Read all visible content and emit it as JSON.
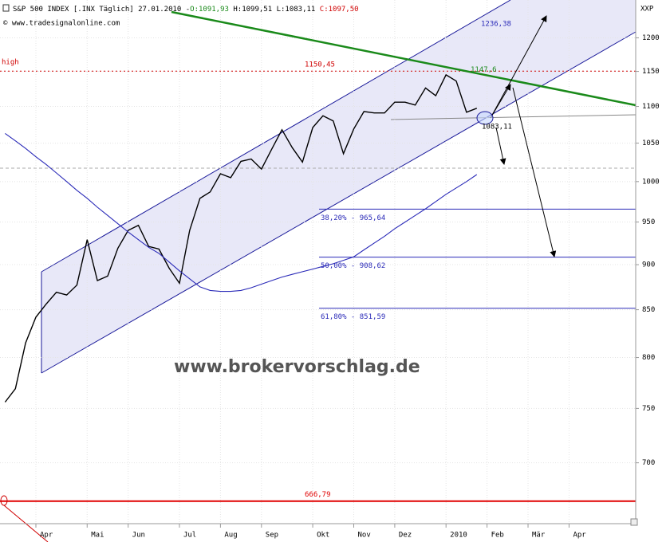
{
  "header": {
    "name": "S&P 500 INDEX [.INX Täglich] 27.01.2010 -",
    "open": "O:1091,93",
    "high": "H:1099,51",
    "low": "L:1083,11",
    "close": "C:1097,50",
    "source": "© www.tradesignalonline.com",
    "corner": "XXP",
    "watermark": "www.brokervorschlag.de"
  },
  "chart_data": {
    "type": "line",
    "log": true,
    "grid": true,
    "categories": [
      null,
      null,
      null,
      "Apr",
      null,
      null,
      null,
      null,
      "Mai",
      null,
      null,
      null,
      "Jun",
      null,
      null,
      null,
      null,
      "Jul",
      null,
      null,
      null,
      "Aug",
      null,
      null,
      null,
      "Sep",
      null,
      null,
      null,
      null,
      "Okt",
      null,
      null,
      null,
      "Nov",
      null,
      null,
      null,
      "Dez",
      null,
      null,
      null,
      null,
      "2010",
      null,
      null,
      null,
      "Feb",
      null,
      null,
      null,
      "Mär",
      null,
      null,
      null,
      "Apr",
      null,
      null,
      null,
      null,
      null,
      null
    ],
    "series": [
      {
        "color": "#000000",
        "values": [
          756,
          769,
          815,
          842,
          856,
          869,
          866,
          877,
          929,
          882,
          887,
          919,
          940,
          946,
          921,
          918,
          896,
          879,
          940,
          979,
          987,
          1010,
          1005,
          1026,
          1029,
          1016,
          1042,
          1068,
          1044,
          1025,
          1071,
          1087,
          1080,
          1036,
          1069,
          1093,
          1091,
          1091,
          1106,
          1106,
          1102,
          1126,
          1115,
          1145,
          1136,
          1092,
          1097.5,
          null,
          null,
          null,
          null,
          null,
          null,
          null,
          null,
          null,
          null,
          null,
          null,
          null,
          null,
          null
        ]
      },
      {
        "color": "#2a2ab8",
        "values": [
          1063,
          1053,
          1043,
          1032,
          1022,
          1011,
          1000,
          989,
          979,
          968,
          958,
          948,
          938,
          929,
          920,
          913,
          903,
          893,
          884,
          875,
          871,
          870,
          870,
          871,
          874,
          878,
          882,
          886,
          889,
          892,
          895,
          898,
          901,
          905,
          909,
          917,
          925,
          933,
          942,
          950,
          958,
          966,
          975,
          984,
          992,
          1000,
          1009,
          null,
          null,
          null,
          null,
          null,
          null,
          null,
          null,
          null,
          null,
          null,
          null,
          null,
          null,
          null
        ]
      }
    ],
    "ylim": [
      648,
      1259
    ],
    "yticks": [
      700,
      750,
      800,
      850,
      900,
      950,
      1000,
      1050,
      1100,
      1150,
      1200
    ],
    "levels": [
      {
        "value": 1150.45,
        "label": "1150,45",
        "note": "high",
        "color": "#d00000",
        "style": "dashed"
      },
      {
        "value": 666.79,
        "label": "666,79",
        "color": "#e00000",
        "style": "solid"
      },
      {
        "value": 965.64,
        "label": "38,20% - 965,64",
        "color": "#2a2ab8",
        "style": "solid"
      },
      {
        "value": 908.62,
        "label": "50,00% - 908,62",
        "color": "#2a2ab8",
        "style": "solid"
      },
      {
        "value": 851.59,
        "label": "61,80% - 851,59",
        "color": "#2a2ab8",
        "style": "solid"
      }
    ],
    "annotations": [
      {
        "value": 1236.38,
        "label": "1236,38",
        "color": "#2a2ab8"
      },
      {
        "value": 1147.6,
        "label": "1147,6",
        "color": "#1a8a1a"
      },
      {
        "value": 1083.11,
        "label": "1083,11",
        "color": "#000000"
      }
    ]
  }
}
